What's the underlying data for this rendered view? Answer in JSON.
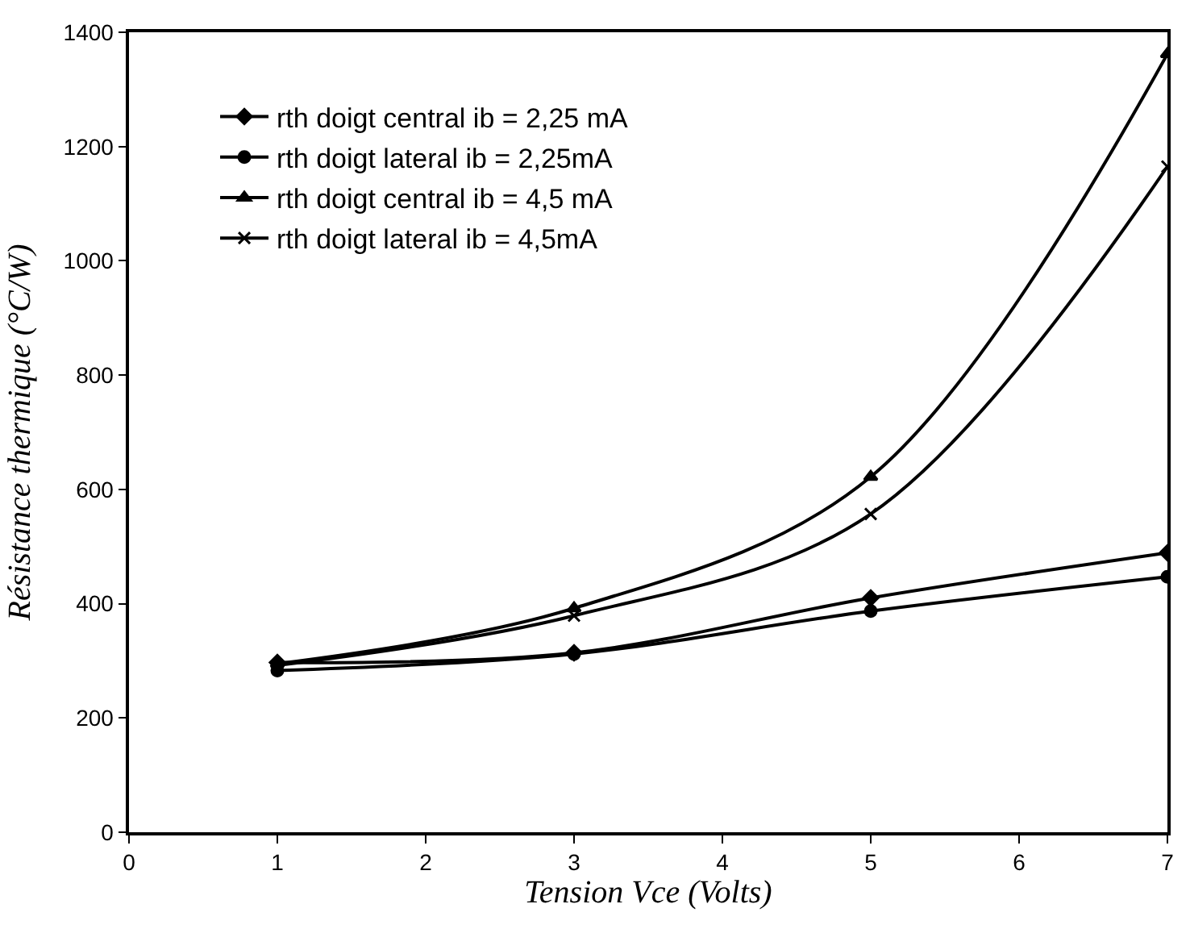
{
  "chart_data": {
    "type": "line",
    "xlabel": "Tension Vce (Volts)",
    "ylabel": "Résistance thermique (°C/W)",
    "x": [
      1,
      3,
      5,
      7
    ],
    "xlim": [
      0,
      7
    ],
    "xticks": [
      0,
      1,
      2,
      3,
      4,
      5,
      6,
      7
    ],
    "ylim": [
      0,
      1400
    ],
    "yticks": [
      0,
      200,
      400,
      600,
      800,
      1000,
      1200,
      1400
    ],
    "legend": "top left",
    "line_style": "solid",
    "series": [
      {
        "name": "rth doigt central ib = 2,25 mA",
        "color": "#000000",
        "marker": "diamond",
        "values": [
          297,
          314,
          410,
          489
        ]
      },
      {
        "name": "rth doigt lateral ib = 2,25mA",
        "color": "#000000",
        "marker": "circle",
        "values": [
          283,
          312,
          387,
          447
        ]
      },
      {
        "name": "rth doigt central ib = 4,5 mA",
        "color": "#000000",
        "marker": "triangle",
        "values": [
          295,
          392,
          622,
          1362
        ]
      },
      {
        "name": "rth doigt lateral ib = 4,5mA",
        "color": "#000000",
        "marker": "cross",
        "values": [
          292,
          379,
          557,
          1165
        ]
      }
    ]
  }
}
